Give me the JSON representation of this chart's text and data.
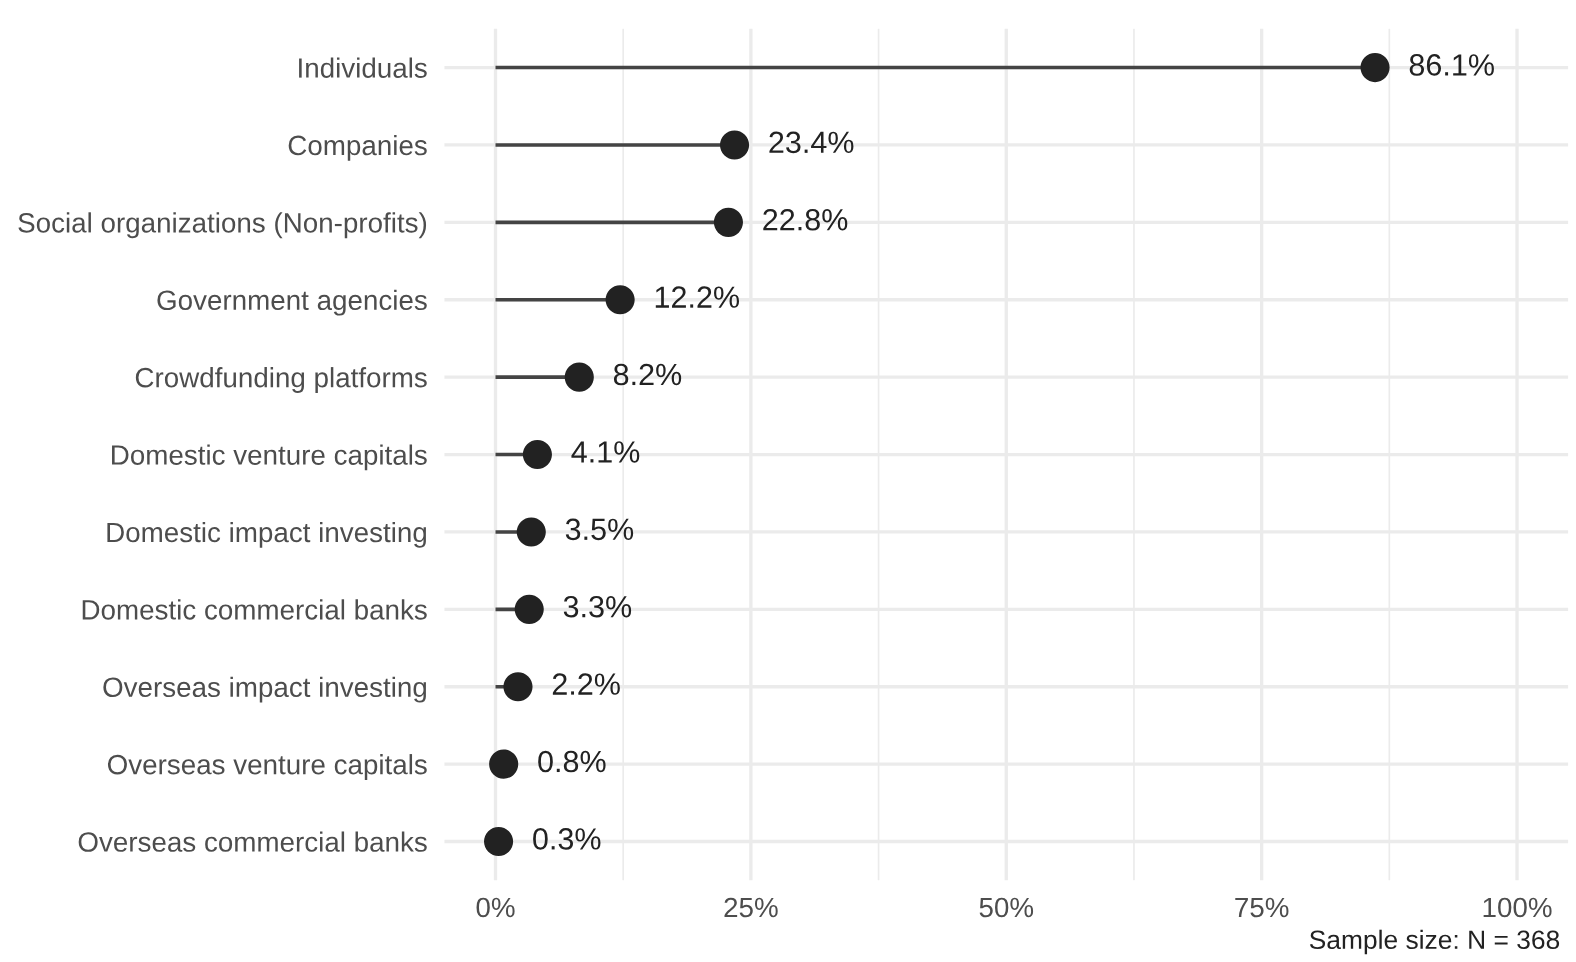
{
  "chart_data": {
    "type": "lollipop",
    "orientation": "horizontal",
    "categories": [
      "Individuals",
      "Companies",
      "Social organizations (Non-profits)",
      "Government agencies",
      "Crowdfunding platforms",
      "Domestic venture capitals",
      "Domestic impact investing",
      "Domestic commercial banks",
      "Overseas impact investing",
      "Overseas venture capitals",
      "Overseas commercial banks"
    ],
    "values": [
      86.1,
      23.4,
      22.8,
      12.2,
      8.2,
      4.1,
      3.5,
      3.3,
      2.2,
      0.8,
      0.3
    ],
    "value_labels": [
      "86.1%",
      "23.4%",
      "22.8%",
      "12.2%",
      "8.2%",
      "4.1%",
      "3.5%",
      "3.3%",
      "2.2%",
      "0.8%",
      "0.3%"
    ],
    "color": "#222222",
    "xlim": [
      -5,
      105
    ],
    "xticks": [
      {
        "value": 0,
        "label": "0%"
      },
      {
        "value": 12.5,
        "label": null
      },
      {
        "value": 25,
        "label": "25%"
      },
      {
        "value": 37.5,
        "label": null
      },
      {
        "value": 50,
        "label": "50%"
      },
      {
        "value": 62.5,
        "label": null
      },
      {
        "value": 75,
        "label": "75%"
      },
      {
        "value": 87.5,
        "label": null
      },
      {
        "value": 100,
        "label": "100%"
      }
    ],
    "grid": true,
    "marker": "circle",
    "annotations": [
      "Sample size: N = 368"
    ]
  }
}
